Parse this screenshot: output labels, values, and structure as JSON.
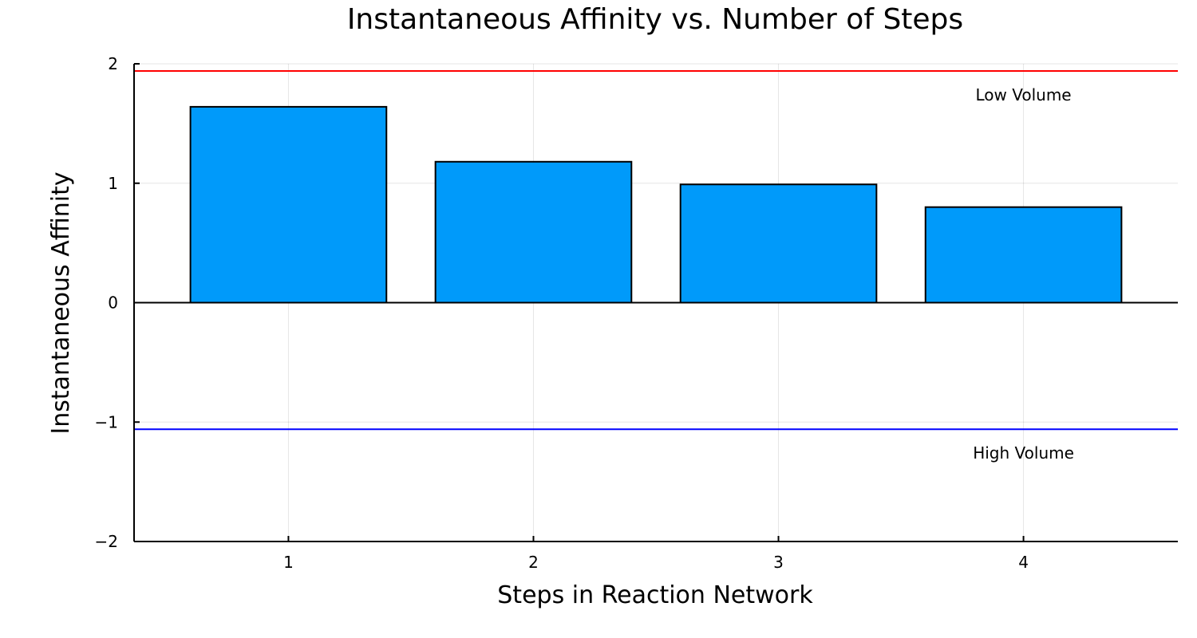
{
  "chart_data": {
    "type": "bar",
    "title": "Instantaneous Affinity vs. Number of Steps",
    "xlabel": "Steps in Reaction Network",
    "ylabel": "Instantaneous Affinity",
    "categories": [
      "1",
      "2",
      "3",
      "4"
    ],
    "x": [
      1,
      2,
      3,
      4
    ],
    "values": [
      1.64,
      1.18,
      0.99,
      0.8
    ],
    "xlim": [
      0.37,
      4.63
    ],
    "ylim": [
      -2,
      2
    ],
    "yticks": [
      2,
      1,
      0,
      -1,
      -2
    ],
    "ytick_labels": [
      "2",
      "1",
      "0",
      "−1",
      "−2"
    ],
    "grid": true,
    "legend": "none",
    "bar_color": "#009AFA",
    "bar_width": 0.8,
    "reference_lines": [
      {
        "y": 1.94,
        "color": "#FF0000"
      },
      {
        "y": -1.06,
        "color": "#0000FF"
      },
      {
        "y": 0,
        "color": "#000000"
      }
    ],
    "annotations": [
      {
        "text": "Low Volume",
        "x": 4,
        "y": 1.73
      },
      {
        "text": "High Volume",
        "x": 4,
        "y": -1.27
      }
    ]
  }
}
